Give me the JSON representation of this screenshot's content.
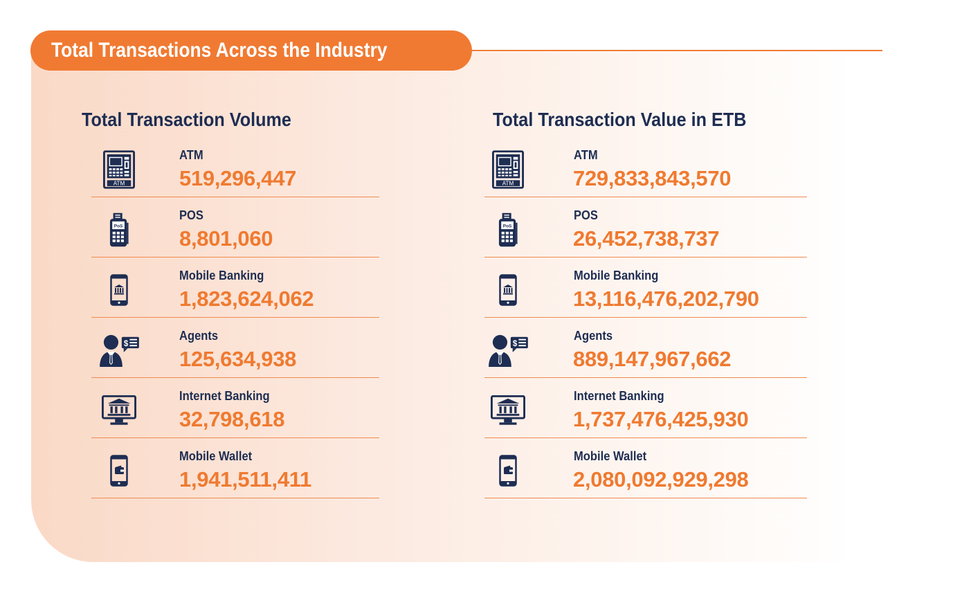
{
  "header": {
    "title": "Total Transactions Across the Industry"
  },
  "colors": {
    "accent": "#f07a32",
    "navy": "#1e2d52"
  },
  "volume": {
    "title": "Total Transaction Volume",
    "rows": [
      {
        "label": "ATM",
        "value": "519,296,447",
        "icon": "atm-icon"
      },
      {
        "label": "POS",
        "value": "8,801,060",
        "icon": "pos-icon"
      },
      {
        "label": "Mobile Banking",
        "value": "1,823,624,062",
        "icon": "mobile-banking-icon"
      },
      {
        "label": "Agents",
        "value": "125,634,938",
        "icon": "agent-icon"
      },
      {
        "label": "Internet Banking",
        "value": "32,798,618",
        "icon": "internet-banking-icon"
      },
      {
        "label": "Mobile Wallet",
        "value": "1,941,511,411",
        "icon": "mobile-wallet-icon"
      }
    ]
  },
  "value": {
    "title": "Total Transaction Value in ETB",
    "rows": [
      {
        "label": "ATM",
        "value": "729,833,843,570",
        "icon": "atm-icon"
      },
      {
        "label": "POS",
        "value": "26,452,738,737",
        "icon": "pos-icon"
      },
      {
        "label": "Mobile Banking",
        "value": "13,116,476,202,790",
        "icon": "mobile-banking-icon"
      },
      {
        "label": "Agents",
        "value": "889,147,967,662",
        "icon": "agent-icon"
      },
      {
        "label": "Internet Banking",
        "value": "1,737,476,425,930",
        "icon": "internet-banking-icon"
      },
      {
        "label": "Mobile Wallet",
        "value": "2,080,092,929,298",
        "icon": "mobile-wallet-icon"
      }
    ]
  },
  "icon_text": {
    "atm": "ATM",
    "pos": "PoS"
  }
}
